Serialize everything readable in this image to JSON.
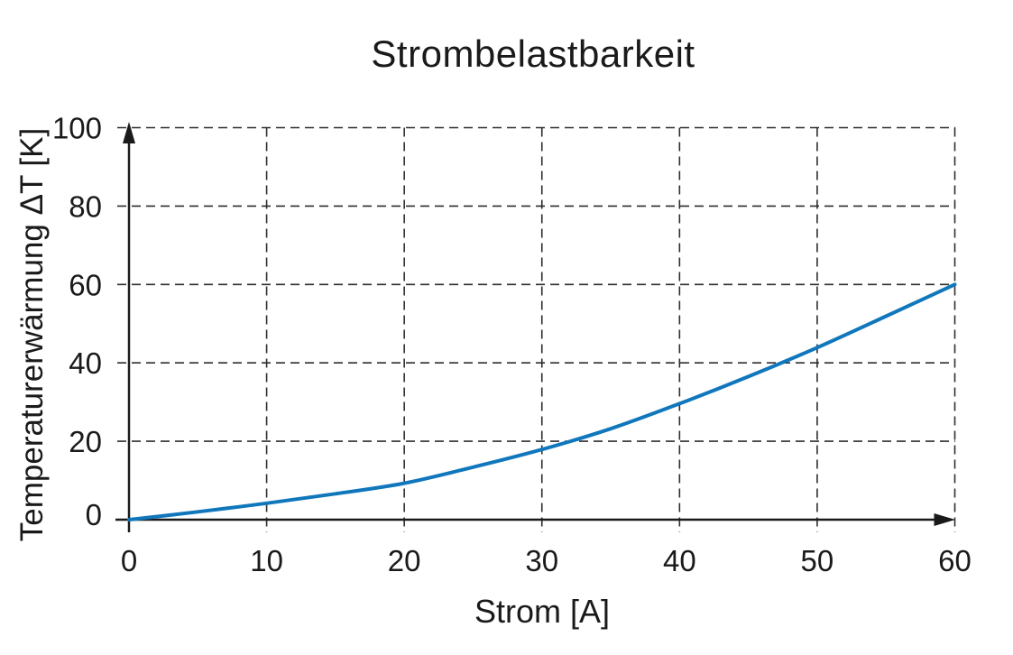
{
  "page": {
    "background": "#ffffff"
  },
  "chart_data": {
    "type": "line",
    "title": "Strombelastbarkeit",
    "xlabel": "Strom [A]",
    "ylabel": "Temperaturerwärmung ΔT [K]",
    "xlim": [
      0,
      60
    ],
    "ylim": [
      0,
      100
    ],
    "x_ticks": [
      0,
      10,
      20,
      30,
      40,
      50,
      60
    ],
    "y_ticks": [
      0,
      20,
      40,
      60,
      80,
      100
    ],
    "grid": "dashed",
    "axis_arrows": true,
    "legend": "none",
    "series": [
      {
        "name": "Temperaturerwärmung ΔT",
        "color": "#1077bc",
        "x": [
          0,
          5,
          10,
          15,
          20,
          25,
          30,
          35,
          40,
          45,
          50,
          55,
          60
        ],
        "y": [
          0,
          2,
          4.2,
          6.6,
          9.3,
          13.4,
          17.9,
          23.2,
          29.6,
          36.5,
          43.9,
          51.9,
          60
        ]
      }
    ],
    "colors": {
      "line": "#1077bc",
      "axis": "#1a1a1a",
      "grid": "#2e2e2e",
      "text": "#1a1a1a"
    }
  }
}
